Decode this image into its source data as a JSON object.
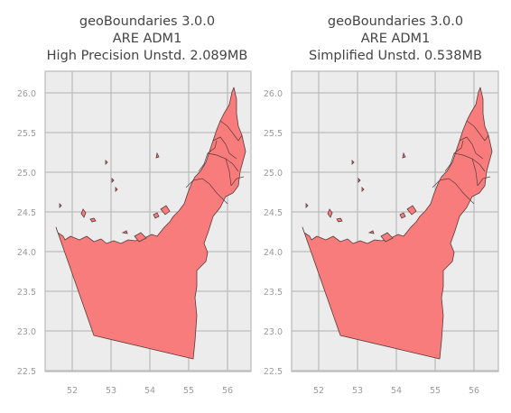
{
  "figure": {
    "panels": [
      {
        "title_line1": "geoBoundaries 3.0.0",
        "title_line2": "ARE ADM1",
        "title_line3": "High Precision Unstd. 2.089MB"
      },
      {
        "title_line1": "geoBoundaries 3.0.0",
        "title_line2": "ARE ADM1",
        "title_line3": "Simplified Unstd. 0.538MB"
      }
    ],
    "x_ticks": [
      "52",
      "53",
      "54",
      "55",
      "56"
    ],
    "y_ticks": [
      "26.0",
      "25.5",
      "25.0",
      "24.5",
      "24.0",
      "23.5",
      "23.0",
      "22.5"
    ],
    "x_tick_values": [
      52,
      53,
      54,
      55,
      56
    ],
    "y_tick_values": [
      26.0,
      25.5,
      25.0,
      24.5,
      24.0,
      23.5,
      23.0,
      22.5
    ],
    "colors": {
      "land_fill": "#f87c7c",
      "boundary": "#5a3a3a",
      "background": "#ececec",
      "grid": "#bdbdbd"
    }
  }
}
